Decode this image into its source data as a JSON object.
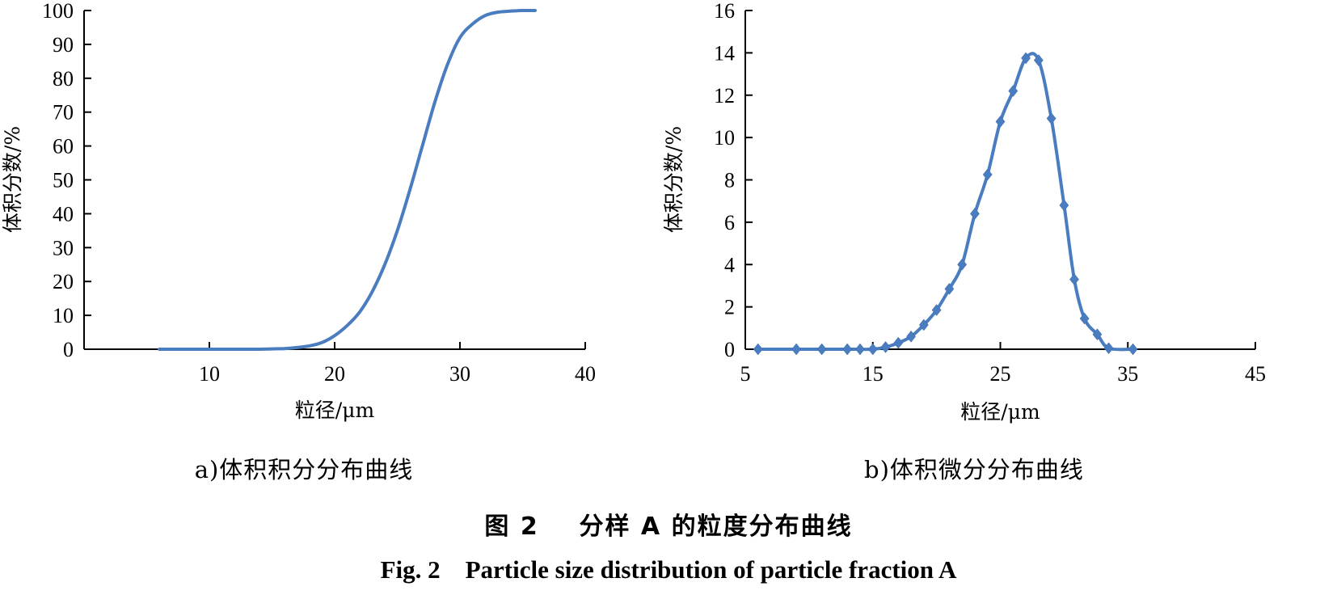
{
  "chart_data": [
    {
      "type": "line",
      "xlabel": "粒径/μm",
      "ylabel": "体积分数/%",
      "caption": "a)体积积分分布曲线",
      "xlim": [
        0,
        40
      ],
      "ylim": [
        0,
        100
      ],
      "xticks": [
        10,
        20,
        30,
        40
      ],
      "yticks": [
        0,
        10,
        20,
        30,
        40,
        50,
        60,
        70,
        80,
        90,
        100
      ],
      "grid": false,
      "series": [
        {
          "color": "#4a7cc0",
          "markers": false,
          "x": [
            6,
            8,
            10,
            12,
            14,
            15,
            16,
            17,
            18,
            19,
            20,
            21,
            22,
            23,
            24,
            25,
            26,
            27,
            28,
            29,
            30,
            31,
            32,
            33,
            34,
            35,
            36
          ],
          "y": [
            0,
            0,
            0,
            0,
            0,
            0.1,
            0.2,
            0.5,
            1,
            2,
            4,
            7,
            11,
            17,
            25,
            35,
            47,
            60,
            73,
            84,
            92,
            96,
            98.5,
            99.5,
            99.8,
            100,
            100
          ]
        }
      ]
    },
    {
      "type": "line",
      "xlabel": "粒径/μm",
      "ylabel": "体积分数/%",
      "caption": "b)体积微分分布曲线",
      "xlim": [
        5,
        45
      ],
      "ylim": [
        0,
        16
      ],
      "xticks": [
        5,
        15,
        25,
        35,
        45
      ],
      "yticks": [
        0,
        2,
        4,
        6,
        8,
        10,
        12,
        14,
        16
      ],
      "grid": false,
      "series": [
        {
          "color": "#4a7cc0",
          "markers": true,
          "marker": "diamond",
          "x": [
            6,
            9,
            11,
            13,
            14,
            15,
            16,
            17,
            18,
            19,
            20,
            21,
            22,
            23,
            24,
            25,
            26,
            27,
            28,
            29,
            30,
            30.8,
            31.6,
            32.6,
            33.5,
            35.4
          ],
          "y": [
            0,
            0,
            0,
            0,
            0,
            0,
            0.1,
            0.3,
            0.6,
            1.15,
            1.85,
            2.85,
            4.0,
            6.4,
            8.25,
            10.75,
            12.2,
            13.75,
            13.65,
            10.9,
            6.8,
            3.3,
            1.45,
            0.7,
            0.05,
            0
          ]
        }
      ]
    }
  ],
  "figure_caption": {
    "cn": "图 2    分样 A 的粒度分布曲线",
    "en": "Fig. 2    Particle size distribution of particle fraction A"
  }
}
